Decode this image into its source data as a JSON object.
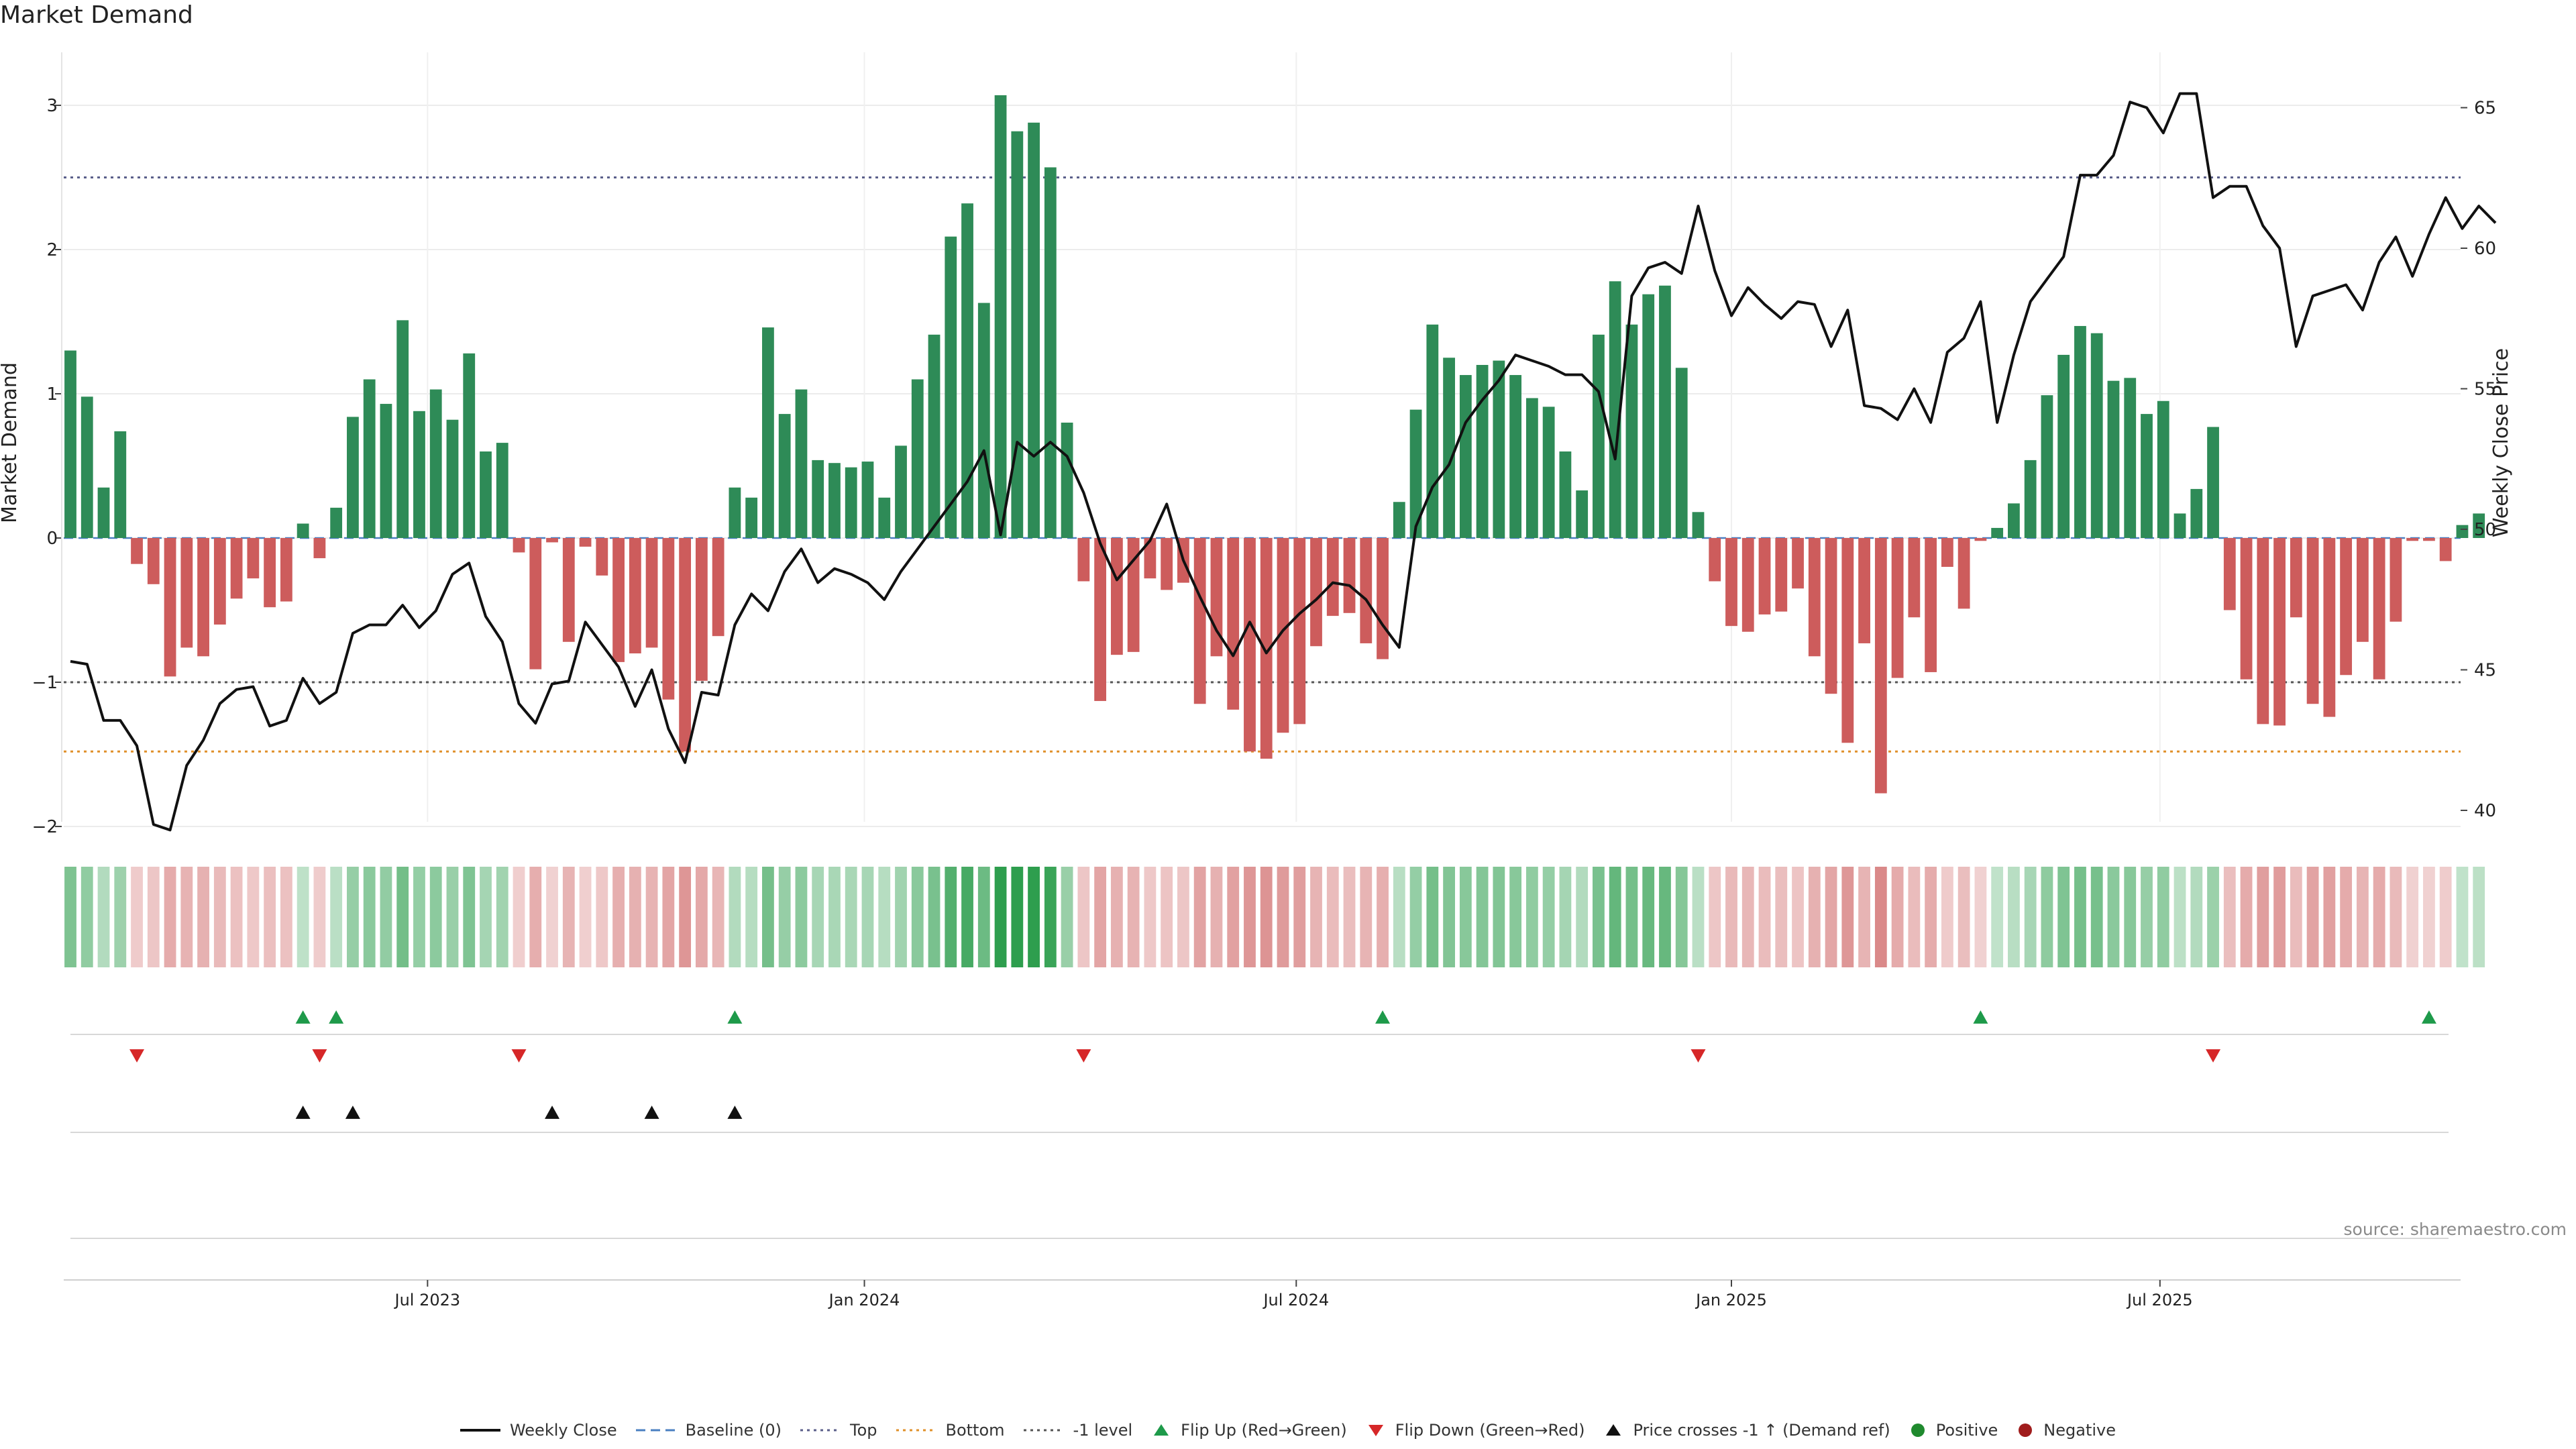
{
  "title": "Market Demand",
  "watermark": "source: sharemaestro.com",
  "legend": [
    {
      "label": "Weekly Close",
      "kind": "line-solid",
      "color": "#111111"
    },
    {
      "label": "Baseline (0)",
      "kind": "line-dash",
      "color": "#4a7fc1"
    },
    {
      "label": "Top",
      "kind": "line-dot",
      "color": "#5b5f8a"
    },
    {
      "label": "Bottom",
      "kind": "line-dot",
      "color": "#e0902a"
    },
    {
      "label": "-1 level",
      "kind": "line-dot",
      "color": "#555555"
    },
    {
      "label": "Flip Up (Red→Green)",
      "kind": "tri-up",
      "color": "#1e9a4a"
    },
    {
      "label": "Flip Down (Green→Red)",
      "kind": "tri-down",
      "color": "#d62728"
    },
    {
      "label": "Price crosses -1 ↑ (Demand ref)",
      "kind": "tri-up",
      "color": "#111111"
    },
    {
      "label": "Positive",
      "kind": "dot",
      "color": "#1f8a2e"
    },
    {
      "label": "Negative",
      "kind": "dot",
      "color": "#a01c1c"
    }
  ],
  "chart_data": {
    "type": "bar",
    "title": "Market Demand",
    "ylabel": "Market Demand",
    "y2label": "Weekly Close Price",
    "ylim": [
      -2.3,
      3.35
    ],
    "y_ticks": [
      "−2",
      "−1",
      "0",
      "1",
      "2",
      "3"
    ],
    "y_tick_values": [
      -2,
      -1,
      0,
      1,
      2,
      3
    ],
    "y2lim": [
      38.8,
      67.8
    ],
    "y2_ticks": [
      "40",
      "45",
      "50",
      "55",
      "60",
      "65"
    ],
    "y2_tick_values": [
      40,
      45,
      50,
      55,
      60,
      65
    ],
    "x_ticks": [
      "Jul 2023",
      "Jan 2024",
      "Jul 2024",
      "Jan 2025",
      "Jul 2025"
    ],
    "x_tick_index": [
      21.5,
      47.8,
      73.8,
      100.0,
      125.8
    ],
    "reference_lines": {
      "top": 2.5,
      "bottom": -1.48,
      "minus_one": -1,
      "baseline": 0
    },
    "colors": {
      "positive_bar": "#2e8b57",
      "negative_bar": "#cd5c5c",
      "price_line": "#111111"
    },
    "demand": [
      1.3,
      0.98,
      0.35,
      0.74,
      -0.18,
      -0.32,
      -0.96,
      -0.76,
      -0.82,
      -0.6,
      -0.42,
      -0.28,
      -0.48,
      -0.44,
      0.1,
      -0.14,
      0.21,
      0.84,
      1.1,
      0.93,
      1.51,
      0.88,
      1.03,
      0.82,
      1.28,
      0.6,
      0.66,
      -0.1,
      -0.91,
      -0.03,
      -0.72,
      -0.06,
      -0.26,
      -0.86,
      -0.8,
      -0.76,
      -1.12,
      -1.48,
      -0.99,
      -0.68,
      0.35,
      0.28,
      1.46,
      0.86,
      1.03,
      0.54,
      0.52,
      0.49,
      0.53,
      0.28,
      0.64,
      1.1,
      1.41,
      2.09,
      2.32,
      1.63,
      3.07,
      2.82,
      2.88,
      2.57,
      0.8,
      -0.3,
      -1.13,
      -0.81,
      -0.79,
      -0.28,
      -0.36,
      -0.31,
      -1.15,
      -0.82,
      -1.19,
      -1.48,
      -1.53,
      -1.35,
      -1.29,
      -0.75,
      -0.54,
      -0.52,
      -0.73,
      -0.84,
      0.25,
      0.89,
      1.48,
      1.25,
      1.13,
      1.2,
      1.23,
      1.13,
      0.97,
      0.91,
      0.6,
      0.33,
      1.41,
      1.78,
      1.48,
      1.69,
      1.75,
      1.18,
      0.18,
      -0.3,
      -0.61,
      -0.65,
      -0.53,
      -0.51,
      -0.35,
      -0.82,
      -1.08,
      -1.42,
      -0.73,
      -1.77,
      -0.97,
      -0.55,
      -0.93,
      -0.2,
      -0.49,
      -0.02,
      0.07,
      0.24,
      0.54,
      0.99,
      1.27,
      1.47,
      1.42,
      1.09,
      1.11,
      0.86,
      0.95,
      0.17,
      0.34,
      0.77,
      -0.5,
      -0.98,
      -1.29,
      -1.3,
      -0.55,
      -1.15,
      -1.24,
      -0.95,
      -0.72,
      -0.98,
      -0.58,
      -0.02,
      -0.02,
      -0.16,
      0.09,
      0.17
    ],
    "close": [
      45.3,
      45.2,
      43.2,
      43.2,
      42.3,
      39.5,
      39.3,
      41.6,
      42.5,
      43.8,
      44.3,
      44.4,
      43.0,
      43.2,
      44.7,
      43.8,
      44.2,
      46.3,
      46.6,
      46.6,
      47.3,
      46.5,
      47.1,
      48.4,
      48.8,
      46.9,
      46.0,
      43.8,
      43.1,
      44.5,
      44.6,
      46.7,
      45.9,
      45.1,
      43.7,
      45.0,
      42.9,
      41.7,
      44.2,
      44.1,
      46.6,
      47.7,
      47.1,
      48.5,
      49.3,
      48.1,
      48.6,
      48.4,
      48.1,
      47.5,
      48.5,
      49.3,
      50.1,
      50.9,
      51.7,
      52.8,
      49.8,
      53.1,
      52.6,
      53.1,
      52.6,
      51.3,
      49.5,
      48.2,
      48.9,
      49.6,
      50.9,
      48.9,
      47.6,
      46.4,
      45.5,
      46.7,
      45.6,
      46.4,
      47.0,
      47.5,
      48.1,
      48.0,
      47.5,
      46.6,
      45.8,
      50.1,
      51.5,
      52.3,
      53.8,
      54.6,
      55.3,
      56.2,
      56.0,
      55.8,
      55.5,
      55.5,
      54.9,
      52.5,
      58.3,
      59.3,
      59.5,
      59.1,
      61.5,
      59.2,
      57.6,
      58.6,
      58.0,
      57.5,
      58.1,
      58.0,
      56.5,
      57.8,
      54.4,
      54.3,
      53.9,
      55.0,
      53.8,
      56.3,
      56.8,
      58.1,
      53.8,
      56.2,
      58.1,
      58.9,
      59.7,
      62.6,
      62.6,
      63.3,
      65.2,
      65.0,
      64.1,
      65.5,
      65.5,
      61.8,
      62.2,
      62.2,
      60.8,
      60.0,
      56.5,
      58.3,
      58.5,
      58.7,
      57.8,
      59.5,
      60.4,
      59.0,
      60.5,
      61.8,
      60.7,
      61.5,
      60.9
    ]
  },
  "strip": {
    "positive_color": "#2e9e4e",
    "negative_color": "#cd6060"
  },
  "markers": {
    "flip_up_idx": [
      14,
      16,
      40,
      79,
      115,
      142
    ],
    "flip_down_idx": [
      4,
      15,
      27,
      61,
      98,
      129
    ],
    "price_cross_idx": [
      14,
      17,
      29,
      35,
      40
    ]
  }
}
